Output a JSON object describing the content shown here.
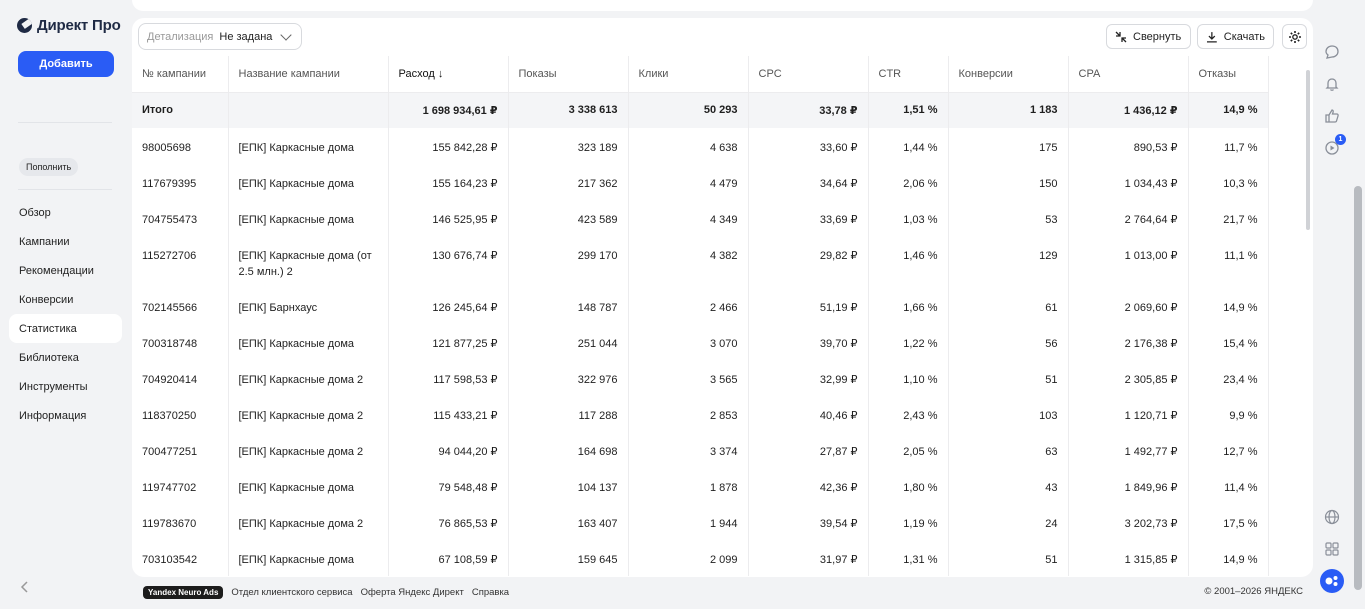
{
  "sidebar": {
    "logo": "Директ Про",
    "add_button": "Добавить",
    "topup_button": "Пополнить",
    "nav": [
      "Обзор",
      "Кампании",
      "Рекомендации",
      "Конверсии",
      "Статистика",
      "Библиотека",
      "Инструменты",
      "Информация"
    ],
    "active_nav": "Статистика"
  },
  "toolbar": {
    "detail_label": "Детализация",
    "detail_value": "Не задана",
    "collapse_label": "Свернуть",
    "download_label": "Скачать"
  },
  "table": {
    "columns": [
      "№ кампании",
      "Название кампании",
      "Расход ↓",
      "Показы",
      "Клики",
      "CPC",
      "CTR",
      "Конверсии",
      "CPA",
      "Отказы"
    ],
    "total": [
      "Итого",
      "",
      "1 698 934,61 ₽",
      "3 338 613",
      "50 293",
      "33,78 ₽",
      "1,51 %",
      "1 183",
      "1 436,12 ₽",
      "14,9 %"
    ],
    "rows": [
      [
        "98005698",
        "[ЕПК] Каркасные дома",
        "155 842,28 ₽",
        "323 189",
        "4 638",
        "33,60 ₽",
        "1,44 %",
        "175",
        "890,53 ₽",
        "11,7 %"
      ],
      [
        "117679395",
        "[ЕПК] Каркасные дома",
        "155 164,23 ₽",
        "217 362",
        "4 479",
        "34,64 ₽",
        "2,06 %",
        "150",
        "1 034,43 ₽",
        "10,3 %"
      ],
      [
        "704755473",
        "[ЕПК] Каркасные дома",
        "146 525,95 ₽",
        "423 589",
        "4 349",
        "33,69 ₽",
        "1,03 %",
        "53",
        "2 764,64 ₽",
        "21,7 %"
      ],
      [
        "115272706",
        "[ЕПК] Каркасные дома (от 2.5 млн.) 2",
        "130 676,74 ₽",
        "299 170",
        "4 382",
        "29,82 ₽",
        "1,46 %",
        "129",
        "1 013,00 ₽",
        "11,1 %"
      ],
      [
        "702145566",
        "[ЕПК] Барнхаус",
        "126 245,64 ₽",
        "148 787",
        "2 466",
        "51,19 ₽",
        "1,66 %",
        "61",
        "2 069,60 ₽",
        "14,9 %"
      ],
      [
        "700318748",
        "[ЕПК] Каркасные дома",
        "121 877,25 ₽",
        "251 044",
        "3 070",
        "39,70 ₽",
        "1,22 %",
        "56",
        "2 176,38 ₽",
        "15,4 %"
      ],
      [
        "704920414",
        "[ЕПК] Каркасные дома 2",
        "117 598,53 ₽",
        "322 976",
        "3 565",
        "32,99 ₽",
        "1,10 %",
        "51",
        "2 305,85 ₽",
        "23,4 %"
      ],
      [
        "118370250",
        "[ЕПК] Каркасные дома 2",
        "115 433,21 ₽",
        "117 288",
        "2 853",
        "40,46 ₽",
        "2,43 %",
        "103",
        "1 120,71 ₽",
        "9,9 %"
      ],
      [
        "700477251",
        "[ЕПК] Каркасные дома 2",
        "94 044,20 ₽",
        "164 698",
        "3 374",
        "27,87 ₽",
        "2,05 %",
        "63",
        "1 492,77 ₽",
        "12,7 %"
      ],
      [
        "119747702",
        "[ЕПК] Каркасные дома",
        "79 548,48 ₽",
        "104 137",
        "1 878",
        "42,36 ₽",
        "1,80 %",
        "43",
        "1 849,96 ₽",
        "11,4 %"
      ],
      [
        "119783670",
        "[ЕПК] Каркасные дома 2",
        "76 865,53 ₽",
        "163 407",
        "1 944",
        "39,54 ₽",
        "1,19 %",
        "24",
        "3 202,73 ₽",
        "17,5 %"
      ],
      [
        "703103542",
        "[ЕПК] Каркасные дома",
        "67 108,59 ₽",
        "159 645",
        "2 099",
        "31,97 ₽",
        "1,31 %",
        "51",
        "1 315,85 ₽",
        "14,9 %"
      ]
    ]
  },
  "footer": {
    "badge": "Yandex Neuro Ads",
    "links": [
      "Отдел клиентского сервиса",
      "Оферта Яндекс Директ",
      "Справка"
    ],
    "copyright": "© 2001–2026 ЯНДЕКС"
  },
  "rail": {
    "notification_count": "1"
  },
  "colors": {
    "accent": "#2a5cf5",
    "background": "#f2f3f5"
  }
}
